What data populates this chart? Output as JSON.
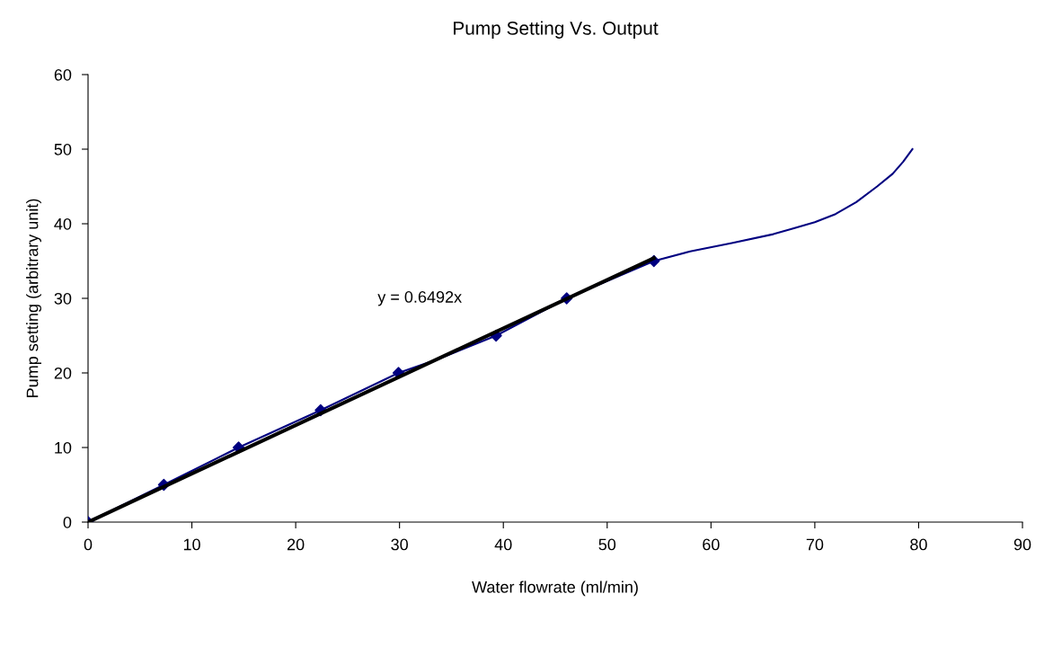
{
  "chart_data": {
    "type": "line",
    "title": "Pump Setting Vs. Output",
    "xlabel": "Water flowrate (ml/min)",
    "ylabel": "Pump setting (arbitrary unit)",
    "xlim": [
      0,
      90
    ],
    "xticks": [
      0,
      10,
      20,
      30,
      40,
      50,
      60,
      70,
      80,
      90
    ],
    "ylim": [
      0,
      60
    ],
    "yticks": [
      0,
      10,
      20,
      30,
      40,
      50,
      60
    ],
    "grid": false,
    "legend": false,
    "series": [
      {
        "color": "#000080",
        "marker": "none",
        "x": [
          0,
          7.3,
          14.5,
          22.4,
          29.9,
          34,
          39.3,
          46.1,
          54.5,
          58,
          62,
          66,
          70,
          72,
          74,
          76,
          77.5,
          78.5,
          79.4
        ],
        "values": [
          0,
          5,
          10,
          15,
          20,
          22,
          25,
          30,
          35,
          36.3,
          37.4,
          38.6,
          40.2,
          41.3,
          42.9,
          45,
          46.7,
          48.3,
          50
        ]
      },
      {
        "type": "scatter",
        "color": "#000080",
        "marker": "diamond",
        "x": [
          0,
          7.3,
          14.5,
          22.4,
          29.9,
          39.3,
          46.1,
          54.5
        ],
        "values": [
          0,
          5,
          10,
          15,
          20,
          25,
          30,
          35
        ]
      },
      {
        "color": "#000000",
        "marker": "none",
        "x": [
          0,
          54.5
        ],
        "values": [
          0,
          35.4
        ]
      }
    ],
    "annotations": [
      "y = 0.6492x"
    ]
  }
}
